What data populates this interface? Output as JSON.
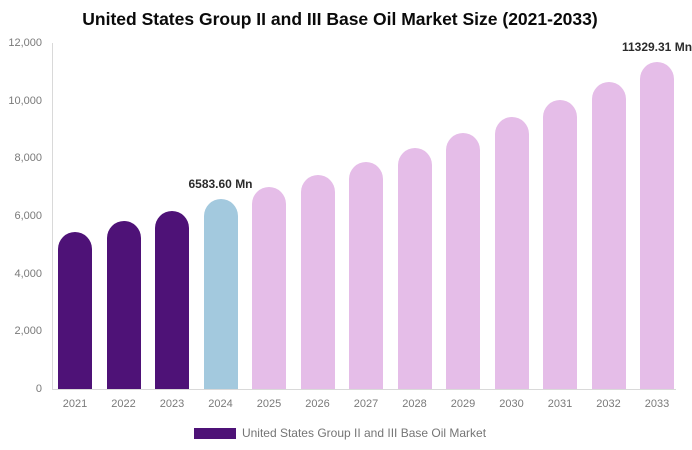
{
  "chart_data": {
    "type": "bar",
    "title": "United States Group II and III Base Oil Market Size (2021-2033)",
    "categories": [
      "2021",
      "2022",
      "2023",
      "2024",
      "2025",
      "2026",
      "2027",
      "2028",
      "2029",
      "2030",
      "2031",
      "2032",
      "2033"
    ],
    "values": [
      5450,
      5840,
      6190,
      6583.6,
      6990,
      7420,
      7880,
      8370,
      8890,
      9440,
      10030,
      10660,
      11329.31
    ],
    "ylim": [
      0,
      12000
    ],
    "y_tick_labels": [
      "12,000",
      "10,000",
      "8,000",
      "6,000",
      "4,000",
      "2,000",
      "0"
    ],
    "grid": false,
    "legend_position": "bottom",
    "bar_colors": {
      "historical": "#4E1277",
      "current": "#A3C9DE",
      "forecast": "#E5BDE8"
    },
    "color_roles": [
      "historical",
      "historical",
      "historical",
      "current",
      "forecast",
      "forecast",
      "forecast",
      "forecast",
      "forecast",
      "forecast",
      "forecast",
      "forecast",
      "forecast"
    ],
    "annotations": [
      {
        "category": "2024",
        "text": "6583.60 Mn"
      },
      {
        "category": "2033",
        "text": "11329.31 Mn"
      }
    ],
    "legend": {
      "items": [
        {
          "label": "United States Group II and III Base Oil Market",
          "color": "#4E1277"
        }
      ]
    }
  }
}
